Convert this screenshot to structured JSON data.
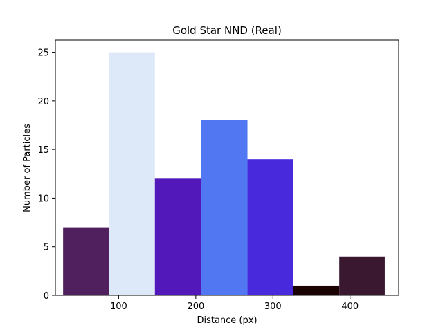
{
  "chart_data": {
    "type": "bar",
    "title": "Gold Star NND (Real)",
    "xlabel": "Distance (px)",
    "ylabel": "Number of Particles",
    "xlim": [
      18,
      463
    ],
    "ylim": [
      0,
      26.25
    ],
    "xticks": [
      100,
      200,
      300,
      400
    ],
    "xtick_labels": [
      "100",
      "200",
      "300",
      "400"
    ],
    "yticks": [
      0,
      5,
      10,
      15,
      20,
      25
    ],
    "ytick_labels": [
      "0",
      "5",
      "10",
      "15",
      "20",
      "25"
    ],
    "grid": false,
    "bins": [
      {
        "start": 28,
        "end": 88,
        "value": 7,
        "color": "#4f1f5e"
      },
      {
        "start": 88,
        "end": 147,
        "value": 25,
        "color": "#dde9f9"
      },
      {
        "start": 147,
        "end": 207,
        "value": 12,
        "color": "#5218b9"
      },
      {
        "start": 207,
        "end": 267,
        "value": 18,
        "color": "#5178f2"
      },
      {
        "start": 267,
        "end": 326,
        "value": 14,
        "color": "#4829db"
      },
      {
        "start": 326,
        "end": 386,
        "value": 1,
        "color": "#1c0303"
      },
      {
        "start": 386,
        "end": 445,
        "value": 4,
        "color": "#3a1830"
      }
    ]
  }
}
